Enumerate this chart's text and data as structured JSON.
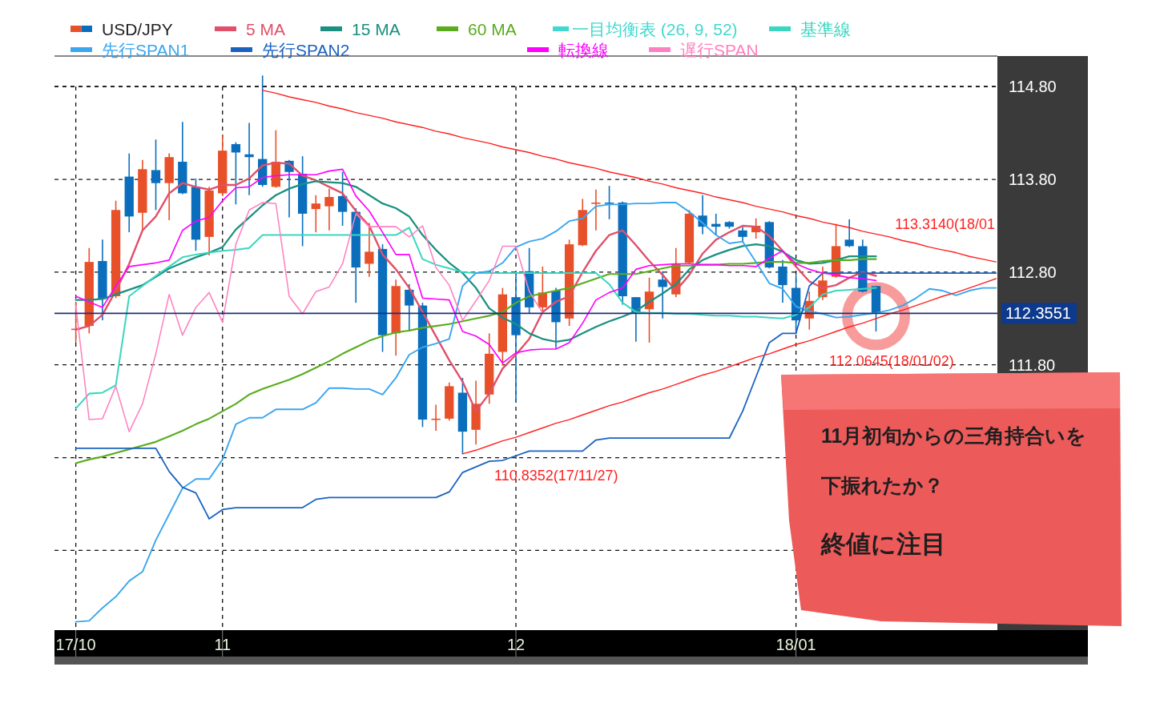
{
  "chart_data": {
    "type": "candlestick",
    "ylim": [
      108.94,
      115.13
    ],
    "categories": [
      "17/10",
      null,
      null,
      null,
      null,
      null,
      null,
      null,
      null,
      null,
      null,
      "11",
      null,
      null,
      null,
      null,
      null,
      null,
      null,
      null,
      null,
      null,
      null,
      null,
      null,
      null,
      null,
      null,
      null,
      null,
      null,
      null,
      null,
      "12",
      null,
      null,
      null,
      null,
      null,
      null,
      null,
      null,
      null,
      null,
      null,
      null,
      null,
      null,
      null,
      null,
      null,
      null,
      null,
      null,
      "18/01",
      null,
      null,
      null,
      null,
      null,
      null,
      null,
      null,
      null,
      null,
      null,
      null,
      null,
      null,
      null
    ],
    "yticks": [
      {
        "value": 114.8,
        "label": "114.80"
      },
      {
        "value": 113.8,
        "label": "113.80"
      },
      {
        "value": 112.8,
        "label": "112.80"
      },
      {
        "value": 111.8,
        "label": "111.80"
      },
      {
        "value": 110.8,
        "label": null
      },
      {
        "value": 109.8,
        "label": null
      }
    ],
    "grid": true,
    "legend": "top left",
    "legend_title": "一目均衡表 (26, 9, 52)",
    "series": [
      {
        "name": "USD/JPY",
        "ohlc": [
          [
            112.18,
            112.48,
            112.04,
            112.19
          ],
          [
            112.22,
            113.06,
            112.14,
            112.91
          ],
          [
            112.92,
            113.15,
            112.28,
            112.51
          ],
          [
            112.54,
            113.57,
            112.52,
            113.47
          ],
          [
            113.83,
            114.08,
            113.23,
            113.4
          ],
          [
            113.44,
            114.01,
            113.25,
            113.91
          ],
          [
            113.9,
            114.23,
            113.47,
            113.76
          ],
          [
            113.76,
            114.08,
            113.36,
            114.04
          ],
          [
            113.99,
            114.42,
            113.64,
            113.65
          ],
          [
            113.72,
            113.81,
            113.03,
            113.15
          ],
          [
            113.18,
            113.72,
            112.98,
            113.68
          ],
          [
            113.65,
            114.28,
            113.62,
            114.11
          ],
          [
            114.18,
            114.2,
            113.53,
            114.09
          ],
          [
            114.07,
            114.41,
            113.63,
            114.04
          ],
          [
            114.02,
            114.92,
            113.72,
            113.74
          ],
          [
            113.72,
            114.33,
            113.71,
            113.99
          ],
          [
            114.0,
            114.01,
            113.39,
            113.88
          ],
          [
            113.86,
            114.05,
            113.08,
            113.43
          ],
          [
            113.48,
            113.63,
            113.23,
            113.54
          ],
          [
            113.51,
            113.7,
            113.25,
            113.61
          ],
          [
            113.62,
            113.88,
            113.3,
            113.45
          ],
          [
            113.45,
            113.49,
            112.47,
            112.85
          ],
          [
            112.89,
            113.33,
            112.75,
            113.02
          ],
          [
            113.05,
            113.1,
            111.94,
            112.12
          ],
          [
            112.14,
            112.72,
            111.9,
            112.65
          ],
          [
            112.61,
            112.67,
            112.16,
            112.44
          ],
          [
            112.44,
            112.47,
            111.13,
            111.21
          ],
          [
            111.21,
            111.37,
            111.09,
            111.22
          ],
          [
            111.22,
            111.61,
            111.2,
            111.57
          ],
          [
            111.5,
            111.66,
            110.84,
            111.08
          ],
          [
            111.1,
            111.63,
            110.94,
            111.38
          ],
          [
            111.48,
            112.14,
            111.38,
            111.92
          ],
          [
            111.94,
            112.63,
            111.79,
            112.56
          ],
          [
            112.53,
            112.79,
            111.41,
            112.12
          ],
          [
            112.81,
            113.06,
            112.35,
            112.42
          ],
          [
            112.42,
            112.86,
            112.37,
            112.58
          ],
          [
            112.6,
            112.63,
            111.98,
            112.26
          ],
          [
            112.3,
            113.15,
            112.22,
            113.1
          ],
          [
            113.09,
            113.59,
            113.08,
            113.47
          ],
          [
            113.54,
            113.69,
            113.25,
            113.55
          ],
          [
            113.55,
            113.73,
            113.37,
            113.54
          ],
          [
            113.55,
            113.56,
            112.45,
            112.54
          ],
          [
            112.53,
            112.53,
            112.05,
            112.35
          ],
          [
            112.4,
            112.74,
            112.04,
            112.59
          ],
          [
            112.72,
            112.81,
            112.3,
            112.64
          ],
          [
            112.56,
            113.06,
            112.53,
            112.89
          ],
          [
            112.9,
            113.47,
            112.89,
            113.43
          ],
          [
            113.41,
            113.63,
            113.21,
            113.29
          ],
          [
            113.32,
            113.43,
            113.2,
            113.29
          ],
          [
            113.34,
            113.35,
            113.27,
            113.29
          ],
          [
            113.25,
            113.29,
            113.12,
            113.18
          ],
          [
            113.23,
            113.38,
            113.16,
            113.3
          ],
          [
            113.34,
            113.35,
            112.84,
            112.85
          ],
          [
            112.86,
            112.93,
            112.47,
            112.66
          ],
          [
            112.63,
            112.77,
            112.14,
            112.28
          ],
          [
            112.3,
            112.59,
            112.18,
            112.49
          ],
          [
            112.53,
            112.86,
            112.5,
            112.71
          ],
          [
            112.75,
            113.32,
            112.74,
            113.08
          ],
          [
            113.15,
            113.37,
            113.07,
            113.08
          ],
          [
            113.08,
            113.15,
            112.58,
            112.59
          ],
          [
            112.65,
            112.65,
            112.16,
            112.36
          ],
          null,
          null,
          null,
          null,
          null,
          null,
          null,
          null,
          null
        ],
        "colors": [
          "#e8502a",
          "#e8502a",
          "#0a6ebd",
          "#e8502a",
          "#0a6ebd",
          "#e8502a",
          "#0a6ebd",
          "#e8502a",
          "#0a6ebd",
          "#0a6ebd",
          "#e8502a",
          "#e8502a",
          "#0a6ebd",
          "#0a6ebd",
          "#0a6ebd",
          "#e8502a",
          "#0a6ebd",
          "#0a6ebd",
          "#e8502a",
          "#e8502a",
          "#0a6ebd",
          "#0a6ebd",
          "#e8502a",
          "#0a6ebd",
          "#e8502a",
          "#0a6ebd",
          "#0a6ebd",
          "#e8502a",
          "#e8502a",
          "#0a6ebd",
          "#e8502a",
          "#e8502a",
          "#e8502a",
          "#0a6ebd",
          "#0a6ebd",
          "#e8502a",
          "#0a6ebd",
          "#e8502a",
          "#e8502a",
          "#e8502a",
          "#0a6ebd",
          "#0a6ebd",
          "#0a6ebd",
          "#e8502a",
          "#0a6ebd",
          "#e8502a",
          "#e8502a",
          "#0a6ebd",
          "#0a6ebd",
          "#0a6ebd",
          "#0a6ebd",
          "#e8502a",
          "#0a6ebd",
          "#0a6ebd",
          "#0a6ebd",
          "#e8502a",
          "#e8502a",
          "#e8502a",
          "#0a6ebd",
          "#0a6ebd",
          "#0a6ebd",
          null,
          null,
          null,
          null,
          null,
          null,
          null,
          null,
          null
        ]
      },
      {
        "name": "5 MA",
        "type": "line",
        "color": "#e0506a",
        "values": [
          112.18,
          112.22,
          112.34,
          112.6,
          112.89,
          113.25,
          113.4,
          113.65,
          113.76,
          113.72,
          113.69,
          113.74,
          113.74,
          113.81,
          113.95,
          113.98,
          113.97,
          113.84,
          113.79,
          113.72,
          113.65,
          113.46,
          113.3,
          112.99,
          112.83,
          112.63,
          112.37,
          112.11,
          111.85,
          111.62,
          111.3,
          111.49,
          111.76,
          111.91,
          112.08,
          112.37,
          112.48,
          112.54,
          112.8,
          113.03,
          113.2,
          113.25,
          113.09,
          112.92,
          112.77,
          112.6,
          112.77,
          113.0,
          113.15,
          113.23,
          113.3,
          113.29,
          113.19,
          113.03,
          112.86,
          112.7,
          112.63,
          112.66,
          112.74,
          112.8,
          112.76,
          null,
          null,
          null,
          null,
          null,
          null,
          null,
          null,
          null
        ]
      },
      {
        "name": "15 MA",
        "type": "line",
        "color": "#1a9080",
        "values": [
          112.5,
          112.5,
          112.51,
          112.56,
          112.61,
          112.66,
          112.75,
          112.84,
          112.9,
          112.96,
          113.01,
          113.07,
          113.26,
          113.39,
          113.52,
          113.63,
          113.7,
          113.75,
          113.78,
          113.77,
          113.76,
          113.72,
          113.63,
          113.54,
          113.49,
          113.4,
          113.2,
          113.04,
          112.9,
          112.79,
          112.63,
          112.41,
          112.31,
          112.24,
          112.14,
          112.08,
          112.05,
          112.07,
          112.14,
          112.21,
          112.27,
          112.32,
          112.38,
          112.48,
          112.57,
          112.67,
          112.83,
          112.93,
          112.99,
          113.04,
          113.08,
          113.1,
          113.08,
          113.02,
          112.93,
          112.89,
          112.9,
          112.93,
          112.97,
          112.97,
          112.97,
          null,
          null,
          null,
          null,
          null,
          null,
          null,
          null,
          null
        ]
      },
      {
        "name": "60 MA",
        "type": "line",
        "color": "#5aac1e",
        "values": [
          110.74,
          110.78,
          110.81,
          110.85,
          110.89,
          110.93,
          110.97,
          111.03,
          111.09,
          111.16,
          111.22,
          111.3,
          111.38,
          111.48,
          111.54,
          111.59,
          111.64,
          111.7,
          111.77,
          111.84,
          111.92,
          111.99,
          112.06,
          112.11,
          112.15,
          112.17,
          112.2,
          112.22,
          112.24,
          112.27,
          112.3,
          112.33,
          112.37,
          112.47,
          112.54,
          112.57,
          112.6,
          112.63,
          112.68,
          112.73,
          112.78,
          112.78,
          112.78,
          112.81,
          112.84,
          112.87,
          112.87,
          112.88,
          112.88,
          112.89,
          112.89,
          112.9,
          112.91,
          112.91,
          112.9,
          112.9,
          112.92,
          112.93,
          112.93,
          112.94,
          112.94,
          null,
          null,
          null,
          null,
          null,
          null,
          null,
          null,
          null
        ]
      },
      {
        "name": "基準線",
        "type": "line",
        "color": "#3ad6c0",
        "values": [
          111.33,
          111.49,
          111.5,
          111.58,
          112.54,
          112.65,
          112.76,
          112.86,
          112.96,
          112.99,
          113.01,
          113.03,
          113.04,
          113.06,
          113.2,
          113.2,
          113.2,
          113.2,
          113.2,
          113.2,
          113.2,
          113.2,
          113.2,
          113.2,
          113.2,
          113.28,
          112.94,
          112.88,
          112.84,
          112.8,
          112.79,
          112.79,
          112.79,
          112.79,
          112.79,
          112.79,
          112.79,
          112.79,
          112.79,
          112.79,
          112.67,
          112.47,
          112.37,
          112.36,
          112.36,
          112.35,
          112.35,
          112.34,
          112.33,
          112.33,
          112.32,
          112.32,
          112.31,
          112.3,
          112.34,
          112.42,
          112.56,
          112.6,
          112.61,
          112.62,
          112.63,
          null,
          null,
          null,
          null,
          null,
          null,
          null,
          null,
          null
        ]
      },
      {
        "name": "先行SPAN1",
        "type": "line",
        "color": "#3aa6ee",
        "values": [
          109.03,
          109.04,
          109.18,
          109.3,
          109.47,
          109.57,
          109.91,
          110.19,
          110.47,
          110.57,
          110.57,
          110.78,
          111.16,
          111.23,
          111.23,
          111.32,
          111.32,
          111.32,
          111.39,
          111.55,
          111.55,
          111.54,
          111.54,
          111.48,
          111.66,
          111.91,
          111.99,
          112.03,
          112.08,
          112.65,
          112.79,
          112.81,
          112.9,
          113.07,
          113.13,
          113.16,
          113.24,
          113.35,
          113.38,
          113.51,
          113.53,
          113.53,
          113.54,
          113.54,
          113.55,
          113.55,
          113.45,
          113.33,
          113.2,
          113.11,
          113.13,
          112.91,
          112.68,
          112.62,
          112.43,
          112.38,
          112.35,
          112.31,
          112.32,
          112.34,
          112.36,
          112.39,
          112.44,
          112.52,
          112.62,
          112.6,
          112.55,
          112.6,
          112.63,
          112.63
        ]
      },
      {
        "name": "先行SPAN2",
        "type": "line",
        "color": "#1a62c0",
        "values": [
          110.9,
          110.9,
          110.9,
          110.9,
          110.9,
          110.9,
          110.9,
          110.65,
          110.48,
          110.42,
          110.14,
          110.24,
          110.26,
          110.26,
          110.26,
          110.26,
          110.26,
          110.26,
          110.35,
          110.37,
          110.37,
          110.37,
          110.37,
          110.37,
          110.37,
          110.37,
          110.37,
          110.37,
          110.43,
          110.64,
          110.7,
          110.76,
          110.77,
          110.82,
          110.87,
          110.87,
          110.87,
          110.87,
          110.87,
          110.99,
          111.01,
          111.01,
          111.01,
          111.01,
          111.01,
          111.01,
          111.01,
          111.01,
          111.01,
          111.01,
          111.3,
          111.67,
          112.04,
          112.14,
          112.14,
          112.65,
          112.79,
          112.79,
          112.79,
          112.79,
          112.79,
          112.79,
          112.79,
          112.79,
          112.79,
          112.79,
          112.79,
          112.79,
          112.79,
          112.79
        ]
      },
      {
        "name": "転換線",
        "type": "line",
        "color": "#ff00ff",
        "values": [
          112.54,
          112.48,
          112.42,
          112.65,
          112.86,
          112.88,
          112.9,
          112.93,
          113.25,
          113.35,
          113.39,
          113.57,
          113.71,
          113.72,
          113.82,
          113.84,
          113.85,
          113.85,
          113.85,
          113.89,
          113.91,
          113.62,
          113.46,
          113.23,
          112.99,
          112.99,
          112.52,
          112.51,
          112.5,
          112.16,
          112.11,
          112.02,
          111.82,
          111.93,
          111.96,
          111.97,
          111.97,
          112.04,
          112.25,
          112.5,
          112.58,
          112.63,
          112.83,
          112.87,
          112.88,
          112.89,
          112.89,
          112.88,
          112.88,
          112.87,
          112.87,
          112.86,
          112.95,
          113.03,
          112.89,
          112.83,
          112.79,
          112.77,
          112.74,
          112.73,
          112.71,
          null,
          null,
          null,
          null,
          null,
          null,
          null,
          null,
          null
        ]
      },
      {
        "name": "遅行SPAN",
        "type": "line",
        "color": "#ff80c0",
        "values": [
          112.44,
          111.21,
          111.22,
          111.57,
          111.08,
          111.38,
          111.92,
          112.56,
          112.12,
          112.42,
          112.58,
          112.26,
          113.1,
          113.47,
          113.55,
          113.54,
          112.54,
          112.35,
          112.59,
          112.64,
          112.89,
          113.43,
          113.29,
          113.29,
          113.29,
          113.18,
          113.3,
          112.85,
          112.66,
          112.28,
          112.49,
          112.71,
          113.08,
          113.08,
          112.59,
          112.36,
          null,
          null,
          null,
          null,
          null,
          null,
          null,
          null,
          null,
          null,
          null,
          null,
          null,
          null,
          null,
          null,
          null,
          null,
          null,
          null,
          null,
          null,
          null,
          null,
          null,
          null,
          null,
          null,
          null,
          null,
          null,
          null,
          null,
          null
        ]
      },
      {
        "type": "line",
        "color": "#ff2020",
        "values": [
          null,
          null,
          null,
          null,
          null,
          null,
          null,
          null,
          null,
          null,
          null,
          null,
          null,
          null,
          114.76,
          114.73,
          114.69,
          114.66,
          114.63,
          114.59,
          114.56,
          114.52,
          114.49,
          114.46,
          114.42,
          114.39,
          114.36,
          114.32,
          114.29,
          114.25,
          114.22,
          114.19,
          114.15,
          114.12,
          114.09,
          114.05,
          114.02,
          113.98,
          113.95,
          113.92,
          113.88,
          113.85,
          113.82,
          113.78,
          113.75,
          113.71,
          113.68,
          113.65,
          113.61,
          113.58,
          113.55,
          113.51,
          113.48,
          113.45,
          113.41,
          113.38,
          113.34,
          113.31,
          113.28,
          113.24,
          113.21,
          113.18,
          113.14,
          113.11,
          113.07,
          113.04,
          113.01,
          112.97,
          112.94,
          112.91
        ]
      },
      {
        "type": "line",
        "color": "#ff2020",
        "values": [
          null,
          null,
          null,
          null,
          null,
          null,
          null,
          null,
          null,
          null,
          null,
          null,
          null,
          null,
          null,
          null,
          null,
          null,
          null,
          null,
          null,
          null,
          null,
          null,
          null,
          null,
          null,
          null,
          null,
          110.84,
          110.88,
          110.93,
          110.98,
          111.02,
          111.07,
          111.12,
          111.17,
          111.21,
          111.26,
          111.31,
          111.36,
          111.4,
          111.45,
          111.5,
          111.54,
          111.59,
          111.64,
          111.69,
          111.73,
          111.78,
          111.83,
          111.88,
          111.92,
          111.97,
          112.02,
          112.06,
          112.11,
          112.16,
          112.21,
          112.25,
          112.3,
          112.35,
          112.39,
          112.44,
          112.49,
          112.54,
          112.58,
          112.63,
          112.68,
          112.73
        ]
      }
    ],
    "ref_lines": [
      {
        "axis": "y",
        "value": 112.3551,
        "label": "112.3551",
        "color": "#1f2f7a"
      }
    ],
    "annotations": [
      "113.3140(18/01",
      "112.0645(18/01/02)",
      "110.8352(17/11/27)",
      "11月初旬からの三角持合いを",
      "下振れたか？",
      "終値に注目"
    ]
  }
}
